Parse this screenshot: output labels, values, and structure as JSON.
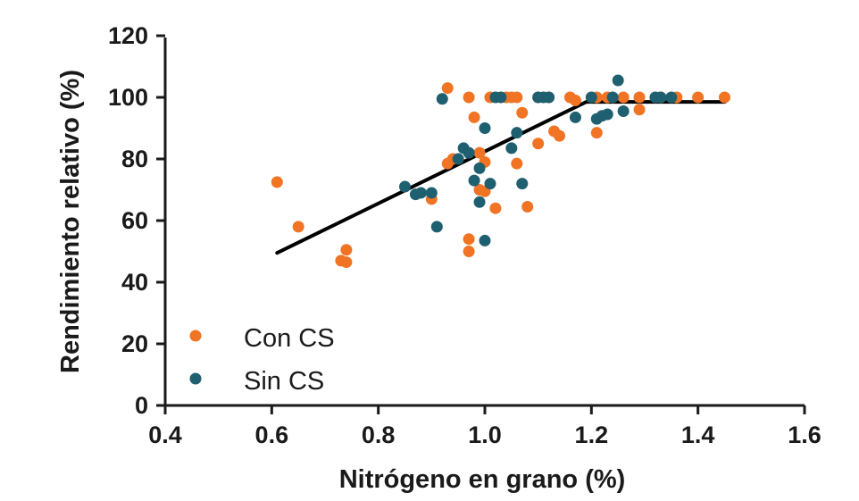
{
  "chart_data": {
    "type": "scatter",
    "xlabel": "Nitrógeno en grano (%)",
    "ylabel": "Rendimiento relativo (%)",
    "xlim": [
      0.4,
      1.6
    ],
    "ylim": [
      0,
      120
    ],
    "xticks": [
      "0.4",
      "0.6",
      "0.8",
      "1.0",
      "1.2",
      "1.4",
      "1.6"
    ],
    "yticks": [
      "0",
      "20",
      "40",
      "60",
      "80",
      "100",
      "120"
    ],
    "grid": false,
    "legend_position": "bottom-left",
    "series": [
      {
        "name": "Con CS",
        "color": "#f07424",
        "points": [
          [
            0.61,
            72.5
          ],
          [
            0.65,
            58
          ],
          [
            0.73,
            47
          ],
          [
            0.74,
            50.5
          ],
          [
            0.74,
            46.5
          ],
          [
            0.9,
            67
          ],
          [
            0.93,
            103
          ],
          [
            0.93,
            78.5
          ],
          [
            0.94,
            80
          ],
          [
            0.97,
            100
          ],
          [
            0.97,
            54
          ],
          [
            0.97,
            50
          ],
          [
            0.98,
            93.5
          ],
          [
            0.99,
            70
          ],
          [
            0.99,
            82
          ],
          [
            1.0,
            79
          ],
          [
            1.0,
            69.5
          ],
          [
            1.01,
            100
          ],
          [
            1.02,
            64
          ],
          [
            1.04,
            100
          ],
          [
            1.05,
            100
          ],
          [
            1.06,
            100
          ],
          [
            1.06,
            78.5
          ],
          [
            1.07,
            95
          ],
          [
            1.08,
            64.5
          ],
          [
            1.1,
            100
          ],
          [
            1.1,
            85
          ],
          [
            1.12,
            100
          ],
          [
            1.13,
            89
          ],
          [
            1.14,
            87.5
          ],
          [
            1.16,
            100
          ],
          [
            1.17,
            99
          ],
          [
            1.21,
            100
          ],
          [
            1.21,
            88.5
          ],
          [
            1.23,
            100
          ],
          [
            1.26,
            100
          ],
          [
            1.29,
            100
          ],
          [
            1.29,
            96
          ],
          [
            1.33,
            100
          ],
          [
            1.36,
            100
          ],
          [
            1.4,
            100
          ],
          [
            1.45,
            100
          ]
        ]
      },
      {
        "name": "Sin CS",
        "color": "#1e5f70",
        "points": [
          [
            0.85,
            71
          ],
          [
            0.87,
            68.5
          ],
          [
            0.88,
            69
          ],
          [
            0.9,
            69
          ],
          [
            0.91,
            58
          ],
          [
            0.92,
            99.5
          ],
          [
            0.95,
            80
          ],
          [
            0.96,
            83.5
          ],
          [
            0.97,
            82
          ],
          [
            0.98,
            73
          ],
          [
            0.99,
            66
          ],
          [
            0.99,
            77
          ],
          [
            1.0,
            90
          ],
          [
            1.0,
            53.5
          ],
          [
            1.01,
            72
          ],
          [
            1.02,
            100
          ],
          [
            1.03,
            100
          ],
          [
            1.05,
            83.5
          ],
          [
            1.06,
            88.5
          ],
          [
            1.07,
            72
          ],
          [
            1.1,
            100
          ],
          [
            1.11,
            100
          ],
          [
            1.12,
            100
          ],
          [
            1.17,
            93.5
          ],
          [
            1.2,
            100
          ],
          [
            1.21,
            93
          ],
          [
            1.22,
            94
          ],
          [
            1.23,
            94.5
          ],
          [
            1.24,
            100
          ],
          [
            1.25,
            105.5
          ],
          [
            1.26,
            95.5
          ],
          [
            1.32,
            100
          ],
          [
            1.33,
            100
          ],
          [
            1.35,
            100
          ]
        ]
      }
    ],
    "fit_line": {
      "color": "#000000",
      "points": [
        [
          0.61,
          49.5
        ],
        [
          1.19,
          98.5
        ],
        [
          1.45,
          98.5
        ]
      ]
    }
  }
}
